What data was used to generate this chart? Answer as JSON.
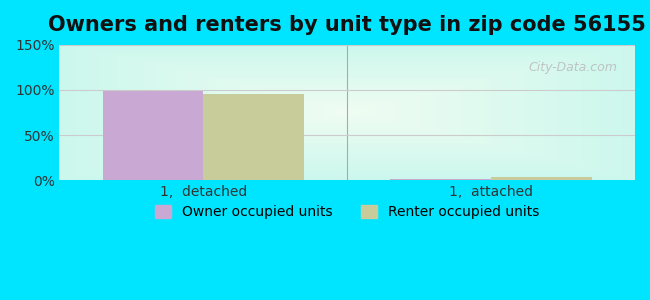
{
  "title": "Owners and renters by unit type in zip code 56155",
  "categories": [
    "1,  detached",
    "1,  attached"
  ],
  "owner_values": [
    99.0,
    1.5
  ],
  "renter_values": [
    95.0,
    3.5
  ],
  "owner_color": "#c9a8d4",
  "renter_color": "#c8cc9a",
  "ylim": [
    0,
    150
  ],
  "yticks": [
    0,
    50,
    100,
    150
  ],
  "ytick_labels": [
    "0%",
    "50%",
    "100%",
    "150%"
  ],
  "bar_width": 0.35,
  "legend_labels": [
    "Owner occupied units",
    "Renter occupied units"
  ],
  "watermark": "City-Data.com",
  "title_fontsize": 15,
  "tick_fontsize": 10,
  "legend_fontsize": 10,
  "background_outer": "#00e5ff",
  "gridline_color": "#cccccc"
}
